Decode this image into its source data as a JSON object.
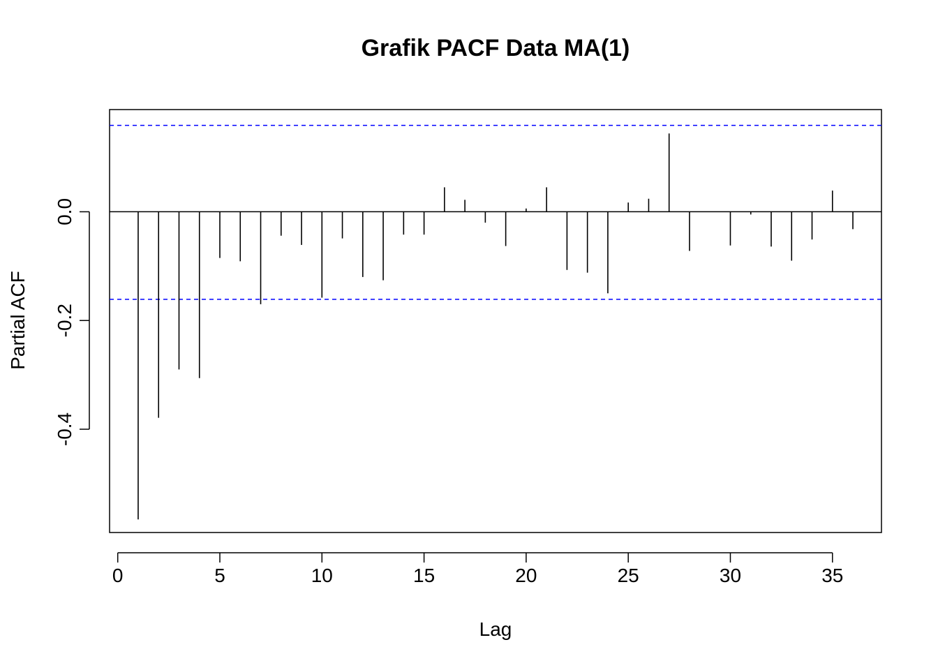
{
  "chart_data": {
    "type": "bar",
    "subtype": "pacf-spike",
    "title": "Grafik PACF Data MA(1)",
    "xlabel": "Lag",
    "ylabel": "Partial ACF",
    "x": [
      1,
      2,
      3,
      4,
      5,
      6,
      7,
      8,
      9,
      10,
      11,
      12,
      13,
      14,
      15,
      16,
      17,
      18,
      19,
      20,
      21,
      22,
      23,
      24,
      25,
      26,
      27,
      28,
      29,
      30,
      31,
      32,
      33,
      34,
      35,
      36
    ],
    "values": [
      -0.566,
      -0.379,
      -0.29,
      -0.306,
      -0.085,
      -0.091,
      -0.17,
      -0.044,
      -0.061,
      -0.158,
      -0.049,
      -0.12,
      -0.126,
      -0.042,
      -0.042,
      0.045,
      0.022,
      -0.02,
      -0.063,
      0.006,
      0.045,
      -0.107,
      -0.112,
      -0.15,
      0.017,
      0.024,
      0.144,
      -0.072,
      0.0,
      -0.062,
      -0.005,
      -0.064,
      -0.09,
      -0.051,
      0.039,
      -0.032
    ],
    "confidence_bounds": [
      0.159,
      -0.161
    ],
    "xlim": [
      -0.4,
      37.4
    ],
    "ylim": [
      -0.59,
      0.188
    ],
    "xticks": [
      0,
      5,
      10,
      15,
      20,
      25,
      30,
      35
    ],
    "yticks": [
      -0.4,
      -0.2,
      0.0
    ],
    "ytick_labels": [
      "-0.4",
      "-0.2",
      "0.0"
    ],
    "grid": false,
    "colors": {
      "spike": "#000000",
      "zero_line": "#000000",
      "bound_line": "#0000ff",
      "frame": "#000000"
    }
  }
}
